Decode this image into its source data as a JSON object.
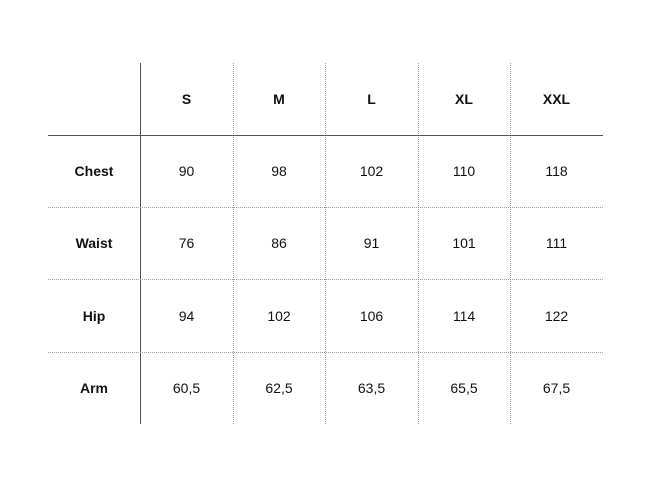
{
  "table": {
    "columns": [
      "S",
      "M",
      "L",
      "XL",
      "XXL"
    ],
    "rows": [
      {
        "label": "Chest",
        "values": [
          "90",
          "98",
          "102",
          "110",
          "118"
        ]
      },
      {
        "label": "Waist",
        "values": [
          "76",
          "86",
          "91",
          "101",
          "111"
        ]
      },
      {
        "label": "Hip",
        "values": [
          "94",
          "102",
          "106",
          "114",
          "122"
        ]
      },
      {
        "label": "Arm",
        "values": [
          "60,5",
          "62,5",
          "63,5",
          "65,5",
          "67,5"
        ]
      }
    ]
  }
}
